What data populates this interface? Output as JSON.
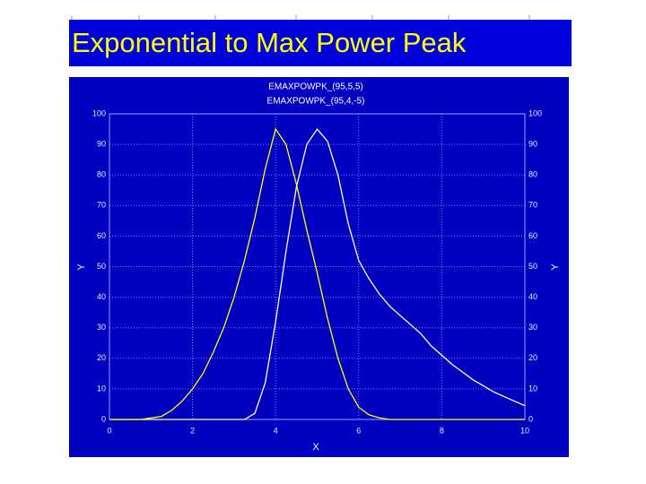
{
  "slide_title": "Exponential to Max Power Peak",
  "chart_data": {
    "type": "line",
    "x_label": "X",
    "y_label": "Y",
    "x": [
      0,
      0.25,
      0.5,
      0.75,
      1,
      1.25,
      1.5,
      1.75,
      2,
      2.25,
      2.5,
      2.75,
      3,
      3.25,
      3.5,
      3.75,
      4,
      4.25,
      4.5,
      4.75,
      5,
      5.25,
      5.5,
      5.75,
      6,
      6.25,
      6.5,
      6.75,
      7,
      7.25,
      7.5,
      7.75,
      8,
      8.25,
      8.5,
      8.75,
      9,
      9.25,
      9.5,
      9.75,
      10
    ],
    "series": [
      {
        "name": "EMAXPOWPK_(95,5,5)",
        "color": "#ffffc8",
        "values": [
          0,
          0,
          0,
          0,
          0,
          0,
          0,
          0,
          0,
          0,
          0,
          0,
          0,
          0,
          2,
          12,
          32,
          55,
          76,
          90,
          95,
          91,
          80,
          64,
          52,
          46,
          41,
          37,
          34,
          31,
          28,
          24,
          21,
          18,
          15.5,
          13,
          11,
          9,
          7.5,
          6,
          4.5
        ]
      },
      {
        "name": "EMAXPOWPK_(95,4,-5)",
        "color": "#ffff00",
        "values": [
          0,
          0,
          0,
          0,
          0.5,
          1,
          3,
          6,
          10,
          15,
          22,
          30,
          40,
          52,
          66,
          82,
          95,
          90,
          77,
          62,
          48,
          33,
          20,
          10,
          4,
          1.5,
          0.5,
          0,
          0,
          0,
          0,
          0,
          0,
          0,
          0,
          0,
          0,
          0,
          0,
          0,
          0
        ]
      }
    ],
    "xlim": [
      0,
      10
    ],
    "xticks": [
      0,
      2,
      4,
      6,
      8,
      10
    ],
    "ylim": [
      0,
      100
    ],
    "yticks": [
      0,
      10,
      20,
      30,
      40,
      50,
      60,
      70,
      80,
      90,
      100
    ],
    "grid": true
  }
}
